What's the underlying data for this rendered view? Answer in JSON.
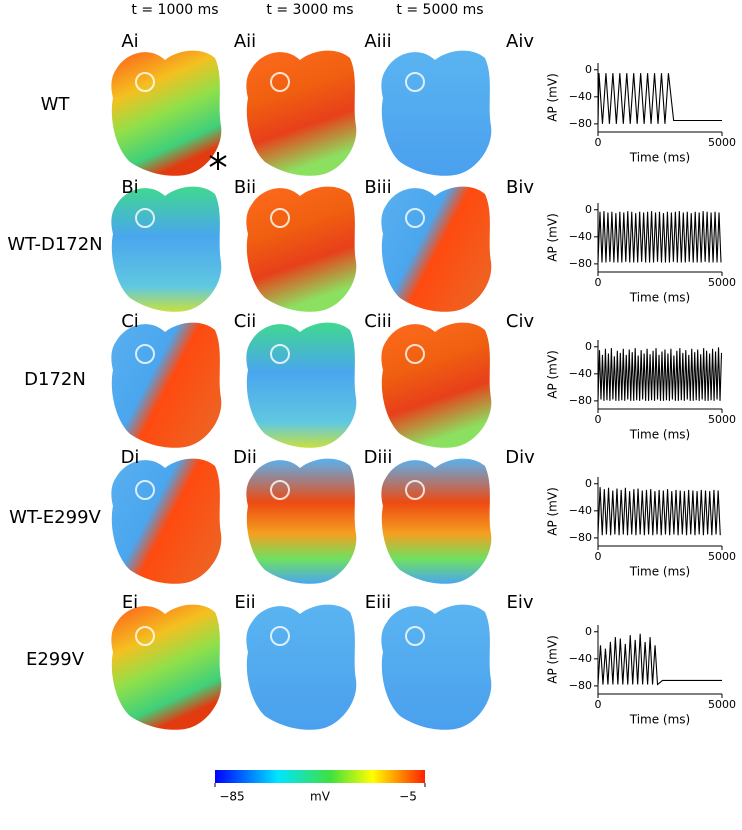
{
  "columns": [
    "t = 1000 ms",
    "t = 3000 ms",
    "t = 5000 ms"
  ],
  "rows": [
    {
      "label": "WT",
      "panels": [
        "Ai",
        "Aii",
        "Aiii",
        "Aiv"
      ]
    },
    {
      "label": "WT-D172N",
      "panels": [
        "Bi",
        "Bii",
        "Biii",
        "Biv"
      ]
    },
    {
      "label": "D172N",
      "panels": [
        "Ci",
        "Cii",
        "Ciii",
        "Civ"
      ]
    },
    {
      "label": "WT-E299V",
      "panels": [
        "Di",
        "Dii",
        "Diii",
        "Div"
      ]
    },
    {
      "label": "E299V",
      "panels": [
        "Ei",
        "Eii",
        "Eiii",
        "Eiv"
      ]
    }
  ],
  "colorbar": {
    "label": "mV",
    "lim": [
      -85,
      -5
    ],
    "ticks": [
      {
        "value": -85,
        "label": "−85"
      },
      {
        "value": -5,
        "label": "−5"
      }
    ]
  },
  "chart_data": [
    {
      "type": "line",
      "xlabel": "Time (ms)",
      "ylabel": "AP (mV)",
      "color": "#000000",
      "xlim": [
        0,
        5000
      ],
      "xticks": [
        0,
        5000
      ],
      "ylim": [
        -92,
        10
      ],
      "yticks": [
        {
          "value": -80,
          "label": "−80"
        },
        {
          "value": -40,
          "label": "−40"
        },
        0
      ],
      "x": [
        0,
        40,
        180,
        320,
        460,
        600,
        740,
        880,
        1020,
        1160,
        1300,
        1440,
        1580,
        1720,
        1860,
        2000,
        2140,
        2280,
        2420,
        2560,
        2700,
        2840,
        3050,
        5000
      ],
      "values": [
        -80,
        -5,
        -80,
        -5,
        -80,
        -5,
        -80,
        -5,
        -80,
        -5,
        -80,
        -5,
        -80,
        -5,
        -80,
        -5,
        -80,
        -5,
        -80,
        -5,
        -80,
        -5,
        -75,
        -75
      ]
    },
    {
      "type": "line",
      "xlabel": "Time (ms)",
      "ylabel": "AP (mV)",
      "color": "#000000",
      "xlim": [
        0,
        5000
      ],
      "xticks": [
        0,
        5000
      ],
      "ylim": [
        -92,
        10
      ],
      "yticks": [
        {
          "value": -80,
          "label": "−80"
        },
        {
          "value": -40,
          "label": "−40"
        },
        0
      ],
      "x": [
        0,
        80,
        160,
        240,
        320,
        400,
        480,
        560,
        640,
        720,
        800,
        880,
        960,
        1040,
        1120,
        1200,
        1280,
        1360,
        1440,
        1520,
        1600,
        1680,
        1760,
        1840,
        1920,
        2000,
        2080,
        2160,
        2240,
        2320,
        2400,
        2480,
        2560,
        2640,
        2720,
        2800,
        2880,
        2960,
        3040,
        3120,
        3200,
        3280,
        3360,
        3440,
        3520,
        3600,
        3680,
        3760,
        3840,
        3920,
        4000,
        4080,
        4160,
        4240,
        4320,
        4400,
        4480,
        4560,
        4640,
        4720,
        4800,
        4880,
        4960
      ],
      "values": [
        -78,
        -3,
        -78,
        -2,
        -78,
        -4,
        -77,
        -3,
        -78,
        -5,
        -78,
        -3,
        -78,
        -4,
        -77,
        -2,
        -78,
        -3,
        -78,
        -5,
        -78,
        -3,
        -77,
        -4,
        -78,
        -3,
        -78,
        -2,
        -78,
        -4,
        -77,
        -3,
        -78,
        -5,
        -78,
        -3,
        -78,
        -4,
        -77,
        -3,
        -78,
        -2,
        -78,
        -4,
        -78,
        -3,
        -77,
        -5,
        -78,
        -3,
        -78,
        -4,
        -78,
        -2,
        -77,
        -3,
        -78,
        -4,
        -78,
        -3,
        -78,
        -4,
        -78
      ]
    },
    {
      "type": "line",
      "xlabel": "Time (ms)",
      "ylabel": "AP (mV)",
      "color": "#000000",
      "xlim": [
        0,
        5000
      ],
      "xticks": [
        0,
        5000
      ],
      "ylim": [
        -92,
        10
      ],
      "yticks": [
        {
          "value": -80,
          "label": "−80"
        },
        {
          "value": -40,
          "label": "−40"
        },
        0
      ],
      "x": [
        0,
        60,
        120,
        180,
        240,
        300,
        360,
        420,
        480,
        540,
        600,
        660,
        720,
        780,
        840,
        900,
        960,
        1020,
        1080,
        1140,
        1200,
        1260,
        1320,
        1380,
        1440,
        1500,
        1560,
        1620,
        1680,
        1740,
        1800,
        1860,
        1920,
        1980,
        2040,
        2100,
        2160,
        2220,
        2280,
        2340,
        2400,
        2460,
        2520,
        2580,
        2640,
        2700,
        2760,
        2820,
        2880,
        2940,
        3000,
        3060,
        3120,
        3180,
        3240,
        3300,
        3360,
        3420,
        3480,
        3540,
        3600,
        3660,
        3720,
        3780,
        3840,
        3900,
        3960,
        4020,
        4080,
        4140,
        4200,
        4260,
        4320,
        4380,
        4440,
        4500,
        4560,
        4620,
        4680,
        4740,
        4800,
        4860,
        4920,
        4980
      ],
      "values": [
        -80,
        -5,
        -78,
        -12,
        -80,
        -3,
        -79,
        -10,
        -80,
        -2,
        -78,
        -14,
        -80,
        -6,
        -80,
        -9,
        -79,
        -3,
        -80,
        -12,
        -78,
        -4,
        -80,
        -8,
        -80,
        -2,
        -79,
        -13,
        -80,
        -5,
        -78,
        -10,
        -80,
        -3,
        -80,
        -11,
        -79,
        -6,
        -80,
        -2,
        -78,
        -12,
        -80,
        -7,
        -80,
        -4,
        -79,
        -10,
        -80,
        -3,
        -78,
        -13,
        -80,
        -6,
        -80,
        -2,
        -79,
        -9,
        -80,
        -5,
        -78,
        -12,
        -80,
        -3,
        -80,
        -8,
        -79,
        -4,
        -80,
        -11,
        -78,
        -2,
        -80,
        -6,
        -80,
        -10,
        -79,
        -3,
        -80,
        -7,
        -78,
        -1,
        -80,
        -9
      ]
    },
    {
      "type": "line",
      "xlabel": "Time (ms)",
      "ylabel": "AP (mV)",
      "color": "#000000",
      "xlim": [
        0,
        5000
      ],
      "xticks": [
        0,
        5000
      ],
      "ylim": [
        -92,
        10
      ],
      "yticks": [
        {
          "value": -80,
          "label": "−80"
        },
        {
          "value": -40,
          "label": "−40"
        },
        0
      ],
      "x": [
        0,
        85,
        170,
        255,
        340,
        425,
        510,
        595,
        680,
        765,
        850,
        935,
        1020,
        1105,
        1190,
        1275,
        1360,
        1445,
        1530,
        1615,
        1700,
        1785,
        1870,
        1955,
        2040,
        2125,
        2210,
        2295,
        2380,
        2465,
        2550,
        2635,
        2720,
        2805,
        2890,
        2975,
        3060,
        3145,
        3230,
        3315,
        3400,
        3485,
        3570,
        3655,
        3740,
        3825,
        3910,
        3995,
        4080,
        4165,
        4250,
        4335,
        4420,
        4505,
        4590,
        4675,
        4760,
        4845,
        4930
      ],
      "values": [
        -75,
        -5,
        -76,
        -8,
        -75,
        -6,
        -76,
        -10,
        -75,
        -7,
        -76,
        -9,
        -75,
        -6,
        -76,
        -11,
        -75,
        -8,
        -76,
        -7,
        -75,
        -10,
        -76,
        -9,
        -75,
        -8,
        -76,
        -11,
        -75,
        -9,
        -76,
        -10,
        -75,
        -8,
        -76,
        -11,
        -75,
        -9,
        -76,
        -10,
        -75,
        -11,
        -76,
        -9,
        -75,
        -10,
        -76,
        -11,
        -75,
        -9,
        -76,
        -10,
        -75,
        -11,
        -76,
        -9,
        -75,
        -10,
        -76
      ]
    },
    {
      "type": "line",
      "xlabel": "Time (ms)",
      "ylabel": "AP (mV)",
      "color": "#000000",
      "xlim": [
        0,
        5000
      ],
      "xticks": [
        0,
        5000
      ],
      "ylim": [
        -92,
        10
      ],
      "yticks": [
        {
          "value": -80,
          "label": "−80"
        },
        {
          "value": -40,
          "label": "−40"
        },
        0
      ],
      "x": [
        0,
        100,
        200,
        300,
        400,
        500,
        600,
        700,
        800,
        900,
        1000,
        1100,
        1200,
        1300,
        1400,
        1500,
        1600,
        1700,
        1800,
        1900,
        2000,
        2100,
        2200,
        2300,
        2400,
        2600,
        5000
      ],
      "values": [
        -78,
        -20,
        -78,
        -25,
        -78,
        -15,
        -78,
        -8,
        -78,
        -10,
        -78,
        -18,
        -78,
        -5,
        -78,
        -12,
        -78,
        -3,
        -78,
        -15,
        -78,
        -8,
        -78,
        -20,
        -78,
        -72,
        -72
      ]
    }
  ]
}
